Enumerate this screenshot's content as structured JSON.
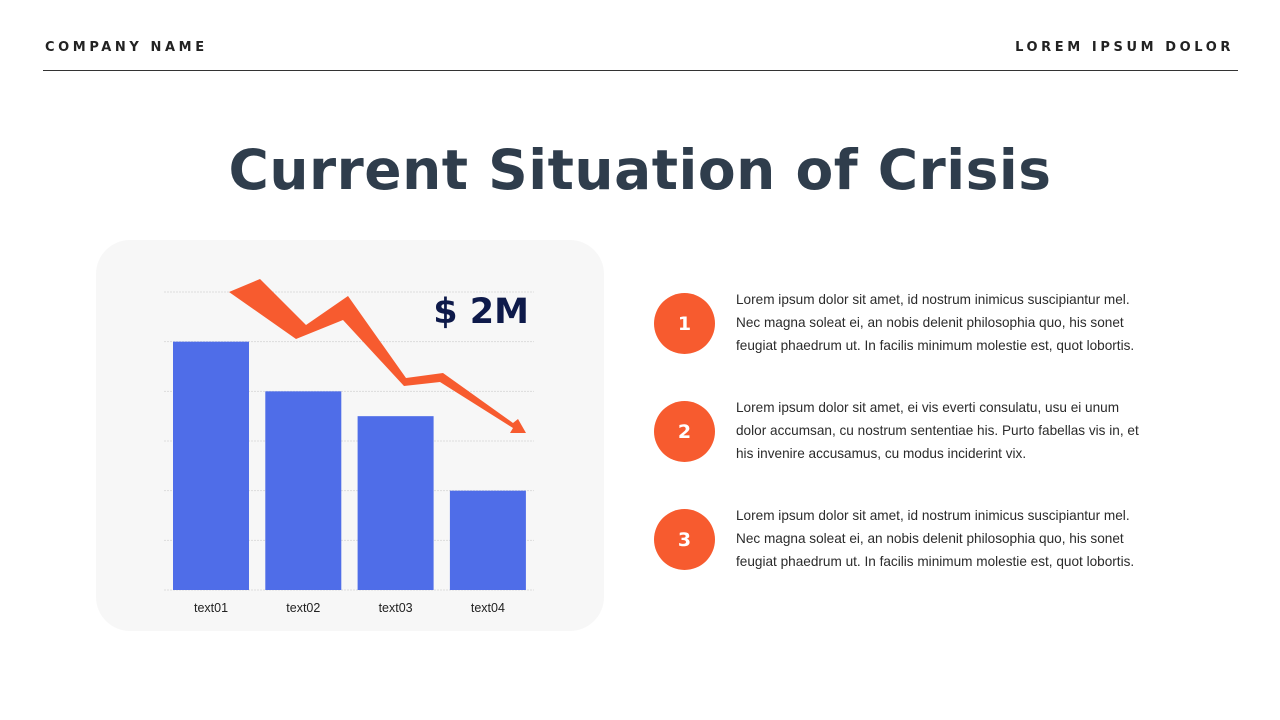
{
  "header": {
    "company": "COMPANY NAME",
    "tagline": "LOREM IPSUM DOLOR"
  },
  "title": "Current Situation of Crisis",
  "colors": {
    "bar": "#4f6de8",
    "accent": "#f75b2f",
    "title": "#2f3d4c",
    "value_label": "#0e1a4a"
  },
  "chart_data": {
    "type": "bar",
    "categories": [
      "text01",
      "text02",
      "text03",
      "text04"
    ],
    "values": [
      5,
      4,
      3.5,
      2
    ],
    "ylim": [
      0,
      6
    ],
    "grid": true,
    "annotation": "$ 2M",
    "trend": "down"
  },
  "items": [
    {
      "number": "1",
      "lines": [
        "Lorem  ipsum dolor sit amet,  id nostrum  inimicus suscipiantur mel.",
        "Nec magna soleat ei, an nobis delenit philosophia quo,  his sonet",
        "feugiat phaedrum  ut.  In facilis minimum molestie est, quot  lobortis."
      ]
    },
    {
      "number": "2",
      "lines": [
        "Lorem  ipsum dolor sit amet,  ei vis everti consulatu, usu ei unum",
        "dolor  accumsan, cu nostrum  sententiae his. Purto  fabellas vis in, et",
        "his invenire accusamus, cu modus  inciderint  vix."
      ]
    },
    {
      "number": "3",
      "lines": [
        "Lorem  ipsum dolor sit amet,  id nostrum  inimicus suscipiantur mel.",
        "Nec magna soleat ei, an nobis delenit philosophia quo,  his sonet",
        "feugiat phaedrum  ut.  In facilis minimum molestie est, quot  lobortis."
      ]
    }
  ]
}
